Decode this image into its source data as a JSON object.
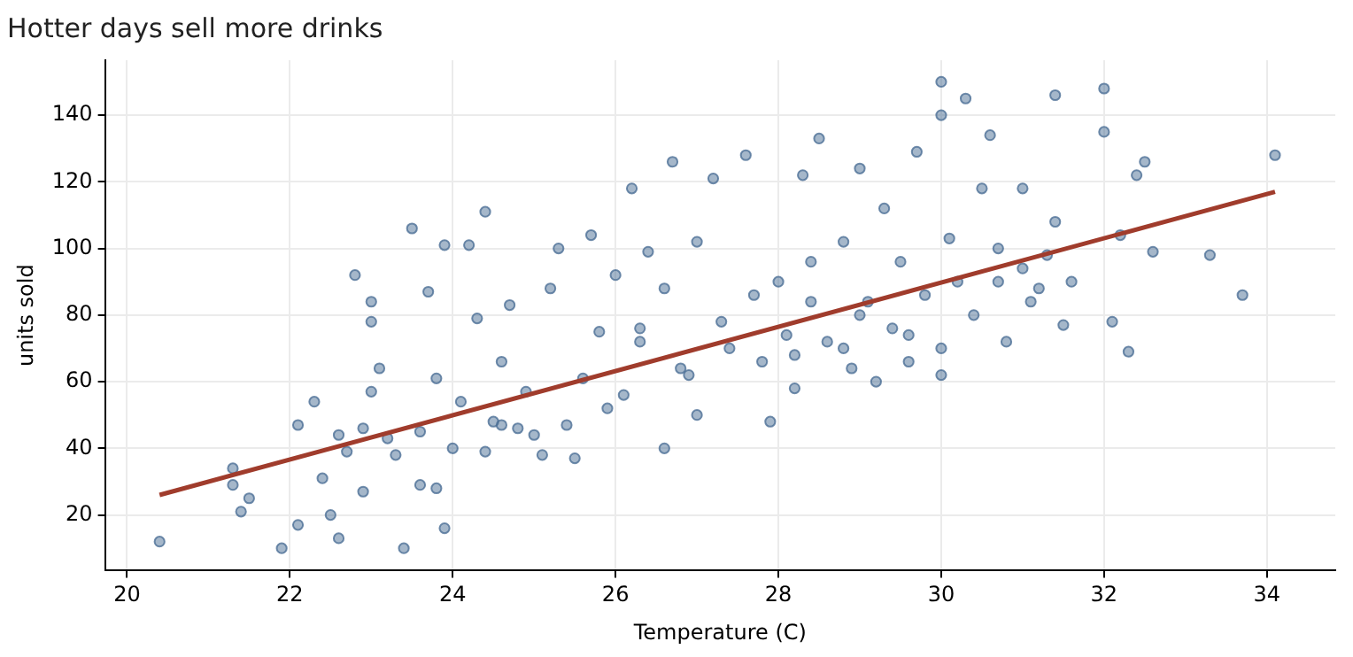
{
  "chart_data": {
    "type": "scatter",
    "title": "Hotter days sell more drinks",
    "xlabel": "Temperature (C)",
    "ylabel": "units sold",
    "xlim": [
      19.73,
      34.84
    ],
    "ylim": [
      3.3,
      156.5
    ],
    "xticks": [
      20,
      22,
      24,
      26,
      28,
      30,
      32,
      34
    ],
    "yticks": [
      20,
      40,
      60,
      80,
      100,
      120,
      140
    ],
    "grid": true,
    "legend": false,
    "series": [
      {
        "color": "#4c6f96",
        "marker": "circle",
        "x": [
          20.4,
          21.3,
          21.3,
          21.4,
          21.5,
          21.9,
          22.1,
          22.1,
          22.3,
          22.4,
          22.5,
          22.6,
          22.6,
          22.7,
          22.8,
          22.9,
          22.9,
          23.0,
          23.0,
          23.0,
          23.1,
          23.2,
          23.3,
          23.4,
          23.5,
          23.6,
          23.6,
          23.7,
          23.8,
          23.8,
          23.9,
          23.9,
          24.0,
          24.1,
          24.2,
          24.3,
          24.4,
          24.4,
          24.5,
          24.6,
          24.7,
          24.8,
          24.9,
          25.1,
          25.2,
          25.3,
          25.4,
          25.5,
          25.6,
          25.7,
          25.8,
          25.9,
          26.0,
          26.1,
          26.2,
          26.3,
          26.4,
          26.6,
          26.6,
          26.7,
          26.9,
          27.0,
          27.0,
          27.2,
          27.3,
          27.6,
          27.8,
          27.9,
          28.0,
          28.1,
          28.2,
          28.3,
          28.4,
          28.5,
          28.6,
          28.8,
          28.9,
          29.0,
          29.1,
          29.2,
          29.3,
          29.4,
          29.5,
          29.6,
          29.7,
          29.8,
          30.0,
          30.0,
          30.0,
          30.0,
          30.1,
          30.2,
          30.3,
          30.4,
          30.5,
          30.6,
          30.7,
          30.8,
          31.0,
          31.0,
          31.1,
          31.2,
          31.4,
          31.4,
          31.5,
          31.6,
          32.0,
          32.0,
          32.1,
          32.2,
          32.3,
          32.4,
          32.5,
          32.6,
          33.3,
          33.7,
          34.1,
          28.2,
          28.4,
          27.4,
          26.8,
          29.0,
          29.6,
          30.7,
          31.3,
          27.7,
          25.0,
          24.6,
          26.3,
          28.8
        ],
        "values": [
          12,
          34,
          29,
          21,
          25,
          10,
          17,
          47,
          54,
          31,
          20,
          44,
          13,
          39,
          92,
          46,
          27,
          78,
          84,
          57,
          64,
          43,
          38,
          10,
          106,
          45,
          29,
          87,
          61,
          28,
          101,
          16,
          40,
          54,
          101,
          79,
          111,
          39,
          48,
          66,
          83,
          46,
          57,
          38,
          88,
          100,
          47,
          37,
          61,
          104,
          75,
          52,
          92,
          56,
          118,
          72,
          99,
          88,
          40,
          126,
          62,
          102,
          50,
          121,
          78,
          128,
          66,
          48,
          90,
          74,
          58,
          122,
          96,
          133,
          72,
          102,
          64,
          124,
          84,
          60,
          112,
          76,
          96,
          66,
          129,
          86,
          150,
          140,
          70,
          62,
          103,
          90,
          145,
          80,
          118,
          134,
          100,
          72,
          118,
          94,
          84,
          88,
          146,
          108,
          77,
          90,
          135,
          148,
          78,
          104,
          69,
          122,
          126,
          99,
          98,
          86,
          128,
          68,
          84,
          70,
          64,
          80,
          74,
          90,
          98,
          86,
          44,
          47,
          76,
          70
        ]
      },
      {
        "type": "line",
        "color": "#a03c2c",
        "x": [
          20.4,
          34.1
        ],
        "values": [
          26,
          117
        ]
      }
    ]
  }
}
